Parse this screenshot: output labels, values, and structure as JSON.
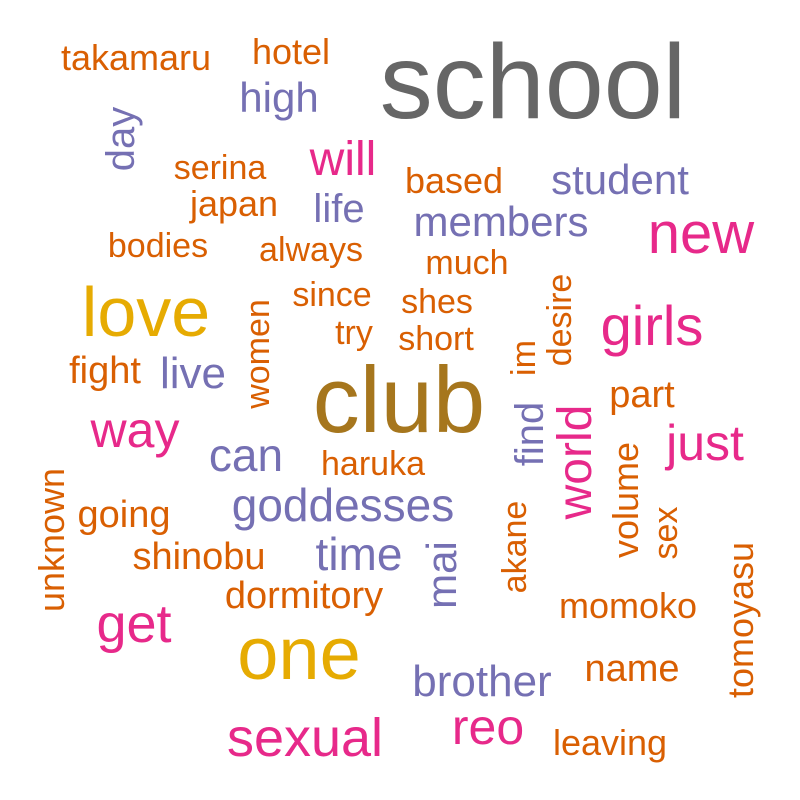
{
  "colors": {
    "gray": "#666666",
    "orange": "#d95f02",
    "purple": "#7570b3",
    "pink": "#e7298a",
    "gold": "#e6ab02",
    "brown": "#a6761d"
  },
  "words": [
    {
      "text": "school",
      "color": "gray"
    },
    {
      "text": "club",
      "color": "brown"
    },
    {
      "text": "love",
      "color": "gold"
    },
    {
      "text": "one",
      "color": "gold"
    },
    {
      "text": "new",
      "color": "pink"
    },
    {
      "text": "girls",
      "color": "pink"
    },
    {
      "text": "sexual",
      "color": "pink"
    },
    {
      "text": "get",
      "color": "pink"
    },
    {
      "text": "way",
      "color": "pink"
    },
    {
      "text": "just",
      "color": "pink"
    },
    {
      "text": "world",
      "color": "pink"
    },
    {
      "text": "reo",
      "color": "pink"
    },
    {
      "text": "will",
      "color": "pink"
    },
    {
      "text": "goddesses",
      "color": "purple"
    },
    {
      "text": "members",
      "color": "purple"
    },
    {
      "text": "student",
      "color": "purple"
    },
    {
      "text": "brother",
      "color": "purple"
    },
    {
      "text": "time",
      "color": "purple"
    },
    {
      "text": "high",
      "color": "purple"
    },
    {
      "text": "can",
      "color": "purple"
    },
    {
      "text": "live",
      "color": "purple"
    },
    {
      "text": "life",
      "color": "purple"
    },
    {
      "text": "day",
      "color": "purple"
    },
    {
      "text": "find",
      "color": "purple"
    },
    {
      "text": "mai",
      "color": "purple"
    },
    {
      "text": "takamaru",
      "color": "orange"
    },
    {
      "text": "hotel",
      "color": "orange"
    },
    {
      "text": "serina",
      "color": "orange"
    },
    {
      "text": "japan",
      "color": "orange"
    },
    {
      "text": "based",
      "color": "orange"
    },
    {
      "text": "bodies",
      "color": "orange"
    },
    {
      "text": "always",
      "color": "orange"
    },
    {
      "text": "much",
      "color": "orange"
    },
    {
      "text": "since",
      "color": "orange"
    },
    {
      "text": "shes",
      "color": "orange"
    },
    {
      "text": "try",
      "color": "orange"
    },
    {
      "text": "short",
      "color": "orange"
    },
    {
      "text": "fight",
      "color": "orange"
    },
    {
      "text": "women",
      "color": "orange"
    },
    {
      "text": "desire",
      "color": "orange"
    },
    {
      "text": "im",
      "color": "orange"
    },
    {
      "text": "part",
      "color": "orange"
    },
    {
      "text": "haruka",
      "color": "orange"
    },
    {
      "text": "going",
      "color": "orange"
    },
    {
      "text": "unknown",
      "color": "orange"
    },
    {
      "text": "shinobu",
      "color": "orange"
    },
    {
      "text": "dormitory",
      "color": "orange"
    },
    {
      "text": "akane",
      "color": "orange"
    },
    {
      "text": "volume",
      "color": "orange"
    },
    {
      "text": "sex",
      "color": "orange"
    },
    {
      "text": "momoko",
      "color": "orange"
    },
    {
      "text": "tomoyasu",
      "color": "orange"
    },
    {
      "text": "name",
      "color": "orange"
    },
    {
      "text": "leaving",
      "color": "orange"
    }
  ]
}
